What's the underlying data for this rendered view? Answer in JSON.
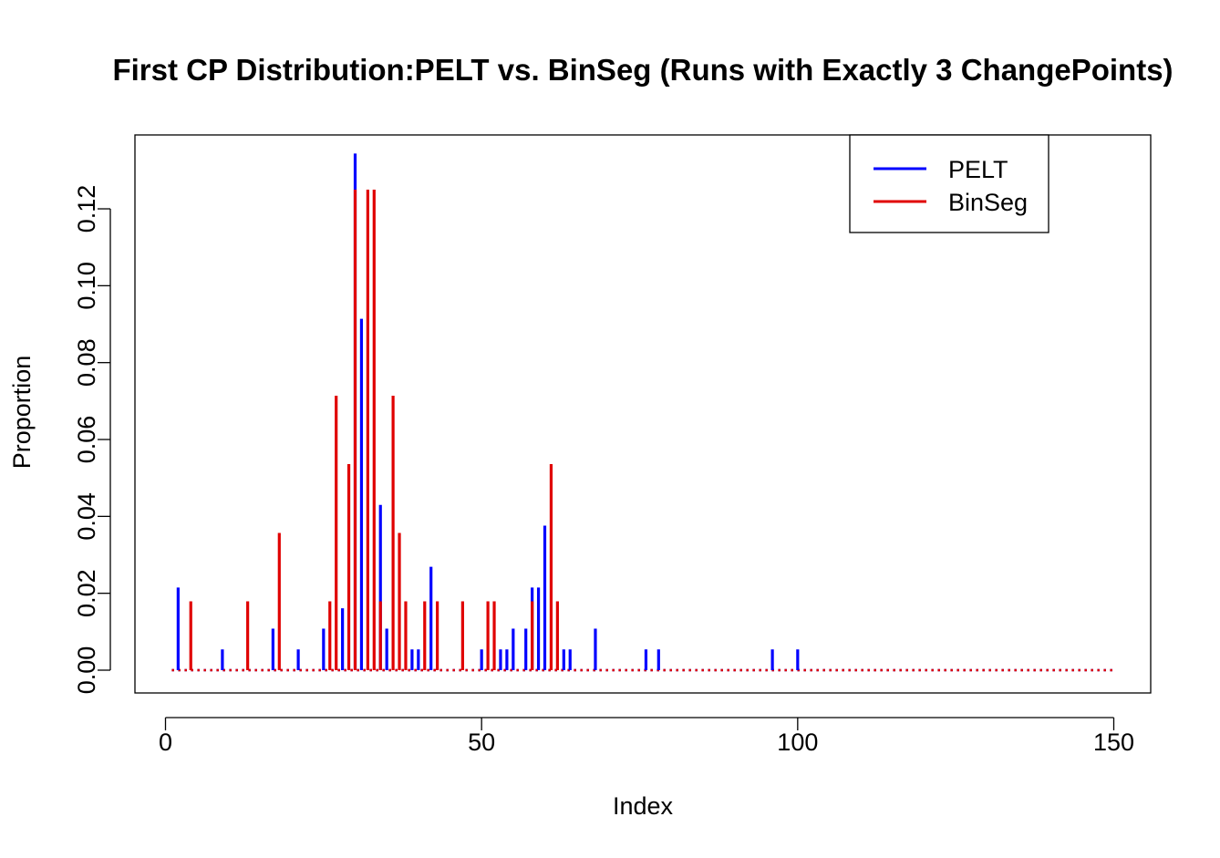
{
  "chart_data": {
    "type": "bar",
    "title": "First CP Distribution:PELT vs. BinSeg (Runs with Exactly 3 ChangePoints)",
    "xlabel": "Index",
    "ylabel": "Proportion",
    "xlim": [
      1,
      150
    ],
    "ylim": [
      0,
      0.134
    ],
    "x_ticks": [
      0,
      50,
      100,
      150
    ],
    "y_ticks": [
      "0.00",
      "0.02",
      "0.04",
      "0.06",
      "0.08",
      "0.10",
      "0.12"
    ],
    "y_tick_values": [
      0,
      0.02,
      0.04,
      0.06,
      0.08,
      0.1,
      0.12
    ],
    "x_tick_labels": [
      "0",
      "50",
      "100",
      "150"
    ],
    "legend_position": "top-right",
    "grid": false,
    "series": [
      {
        "name": "PELT",
        "color": "#0000ff",
        "points": [
          [
            2,
            0.0215
          ],
          [
            9,
            0.0054
          ],
          [
            17,
            0.0108
          ],
          [
            21,
            0.0054
          ],
          [
            25,
            0.0108
          ],
          [
            28,
            0.0161
          ],
          [
            30,
            0.1344
          ],
          [
            31,
            0.0914
          ],
          [
            34,
            0.043
          ],
          [
            35,
            0.0108
          ],
          [
            39,
            0.0054
          ],
          [
            40,
            0.0054
          ],
          [
            42,
            0.0269
          ],
          [
            50,
            0.0054
          ],
          [
            53,
            0.0054
          ],
          [
            54,
            0.0054
          ],
          [
            55,
            0.0108
          ],
          [
            57,
            0.0108
          ],
          [
            58,
            0.0215
          ],
          [
            59,
            0.0215
          ],
          [
            60,
            0.0376
          ],
          [
            63,
            0.0054
          ],
          [
            64,
            0.0054
          ],
          [
            68,
            0.0108
          ],
          [
            76,
            0.0054
          ],
          [
            78,
            0.0054
          ],
          [
            96,
            0.0054
          ],
          [
            100,
            0.0054
          ]
        ]
      },
      {
        "name": "BinSeg",
        "color": "#e00000",
        "points": [
          [
            4,
            0.0179
          ],
          [
            13,
            0.0179
          ],
          [
            18,
            0.0357
          ],
          [
            26,
            0.0179
          ],
          [
            27,
            0.0714
          ],
          [
            29,
            0.0536
          ],
          [
            30,
            0.125
          ],
          [
            32,
            0.125
          ],
          [
            33,
            0.125
          ],
          [
            34,
            0.0179
          ],
          [
            36,
            0.0714
          ],
          [
            37,
            0.0357
          ],
          [
            38,
            0.0179
          ],
          [
            41,
            0.0179
          ],
          [
            43,
            0.0179
          ],
          [
            47,
            0.0179
          ],
          [
            51,
            0.0179
          ],
          [
            52,
            0.0179
          ],
          [
            58,
            0.0179
          ],
          [
            61,
            0.0536
          ],
          [
            62,
            0.0179
          ]
        ]
      }
    ]
  }
}
